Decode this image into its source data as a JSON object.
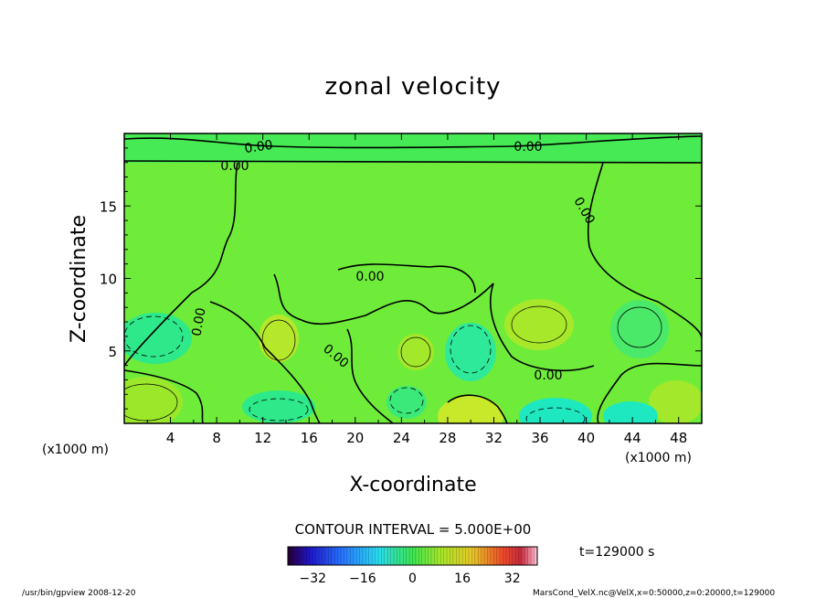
{
  "chart_data": {
    "type": "heatmap",
    "title": "zonal velocity",
    "xlabel": "X-coordinate",
    "ylabel": "Z-coordinate",
    "x_unit_left": "(x1000 m)",
    "x_unit_right": "(x1000 m)",
    "xlim": [
      0,
      50
    ],
    "ylim": [
      0,
      20
    ],
    "x_ticks": [
      4,
      8,
      12,
      16,
      20,
      24,
      28,
      32,
      36,
      40,
      44,
      48
    ],
    "y_ticks": [
      5,
      10,
      15
    ],
    "contour_interval": "CONTOUR INTERVAL = 5.000E+00",
    "contour_labels": [
      "0.00",
      "0.00",
      "0.00",
      "0.00",
      "0.00",
      "0.00",
      "0.00",
      "0.00"
    ],
    "colorbar": {
      "ticks": [
        -32,
        -16,
        0,
        16,
        32
      ],
      "range": [
        -40,
        40
      ]
    },
    "time_label": "t=129000 s",
    "footer_left": "/usr/bin/gpview  2008-12-20",
    "footer_right": "MarsCond_VelX.nc@VelX,x=0:50000,z=0:20000,t=129000"
  }
}
